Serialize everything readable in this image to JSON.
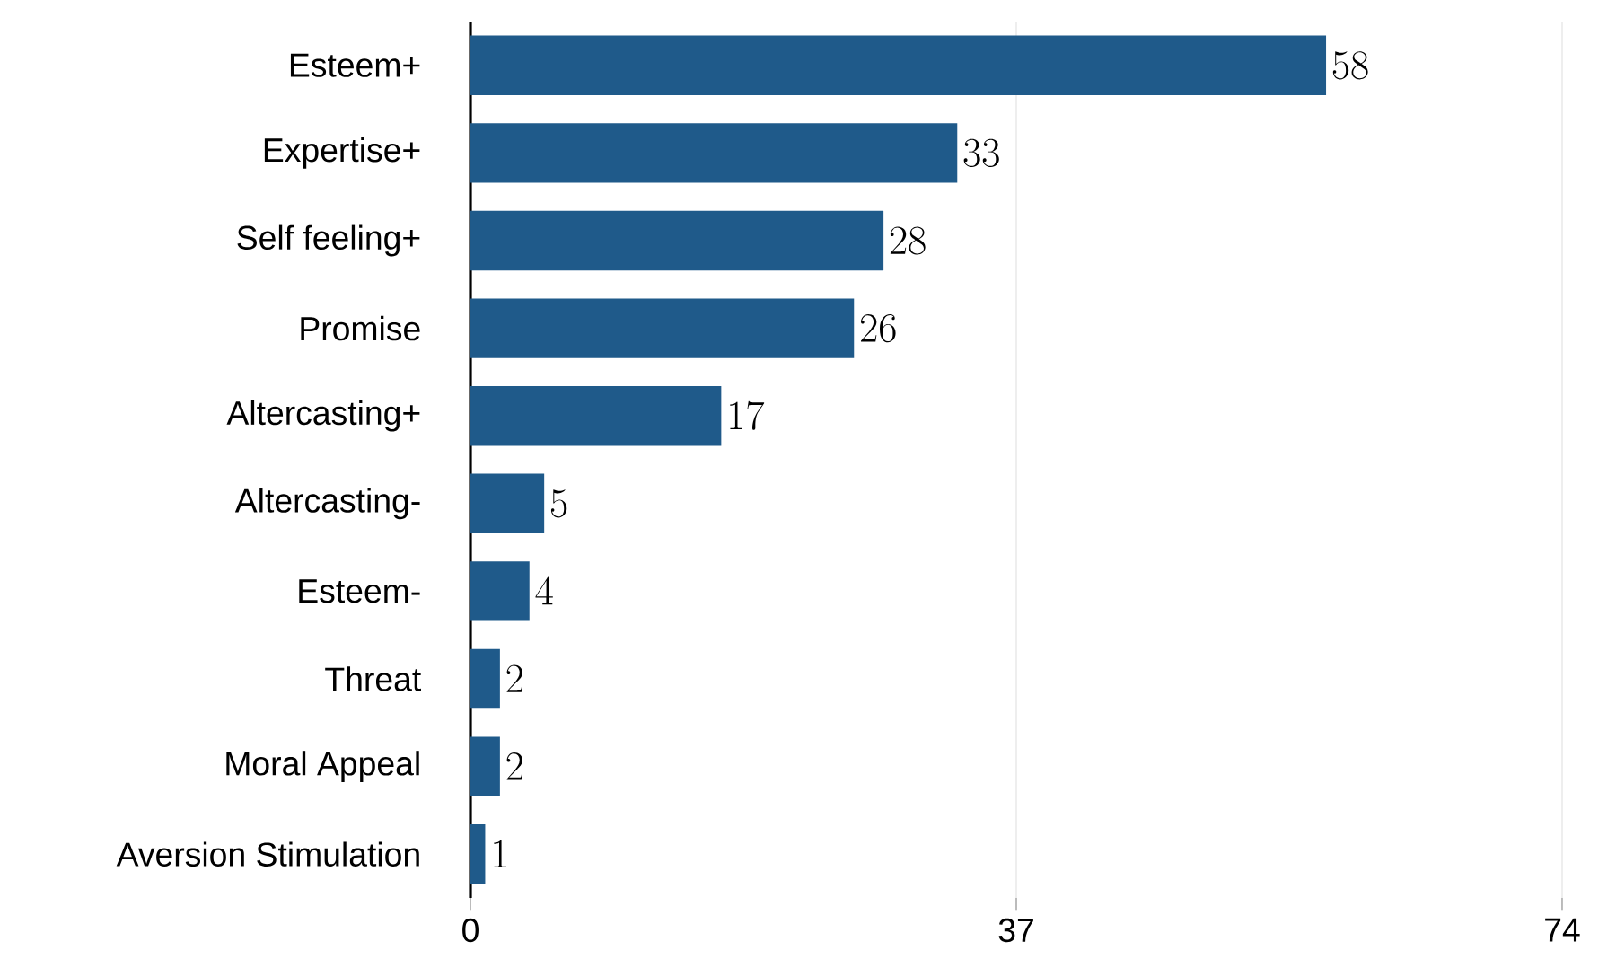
{
  "chart_data": {
    "type": "bar",
    "orientation": "horizontal",
    "categories": [
      "Esteem+",
      "Expertise+",
      "Self feeling+",
      "Promise",
      "Altercasting+",
      "Altercasting-",
      "Esteem-",
      "Threat",
      "Moral Appeal",
      "Aversion Stimulation"
    ],
    "values": [
      58,
      33,
      28,
      26,
      17,
      5,
      4,
      2,
      2,
      1
    ],
    "color": "#1f5a8a",
    "xlim": [
      0,
      74
    ],
    "xticks": [
      0,
      37,
      74
    ],
    "grid": "x",
    "data_labels": true
  }
}
